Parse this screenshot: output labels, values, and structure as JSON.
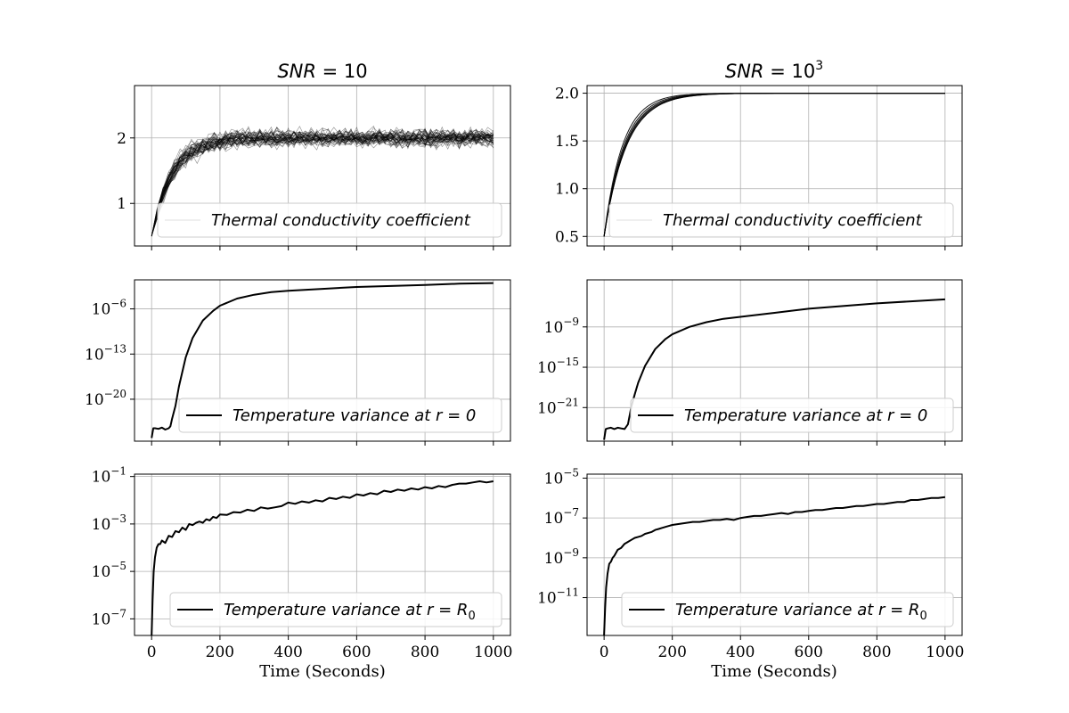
{
  "figure": {
    "xlabel": "Time (Seconds)"
  },
  "columns": [
    {
      "title_var": "SNR",
      "title_eq": " = ",
      "title_base": "10",
      "title_exp": ""
    },
    {
      "title_var": "SNR",
      "title_eq": " = ",
      "title_base": "10",
      "title_exp": "3"
    }
  ],
  "chart_data": [
    {
      "id": "left-top",
      "type": "line",
      "scale": "linear",
      "xlim": [
        -50,
        1050
      ],
      "ylim": [
        0.35,
        2.8
      ],
      "grid": true,
      "xticks": [
        0,
        200,
        400,
        600,
        800,
        1000
      ],
      "yticks": [
        {
          "v": 1,
          "base": "1",
          "exp": ""
        },
        {
          "v": 2,
          "base": "2",
          "exp": ""
        }
      ],
      "legend": {
        "label": "Thermal conductivity coefficient",
        "placement": "lower-right"
      },
      "series_style": "ensemble-noisy",
      "ensemble": {
        "count": 45,
        "start": 0.5,
        "plateau": 2.0,
        "time_constant": 60,
        "noise": 0.2,
        "samples": 60
      }
    },
    {
      "id": "right-top",
      "type": "line",
      "scale": "linear",
      "xlim": [
        -50,
        1050
      ],
      "ylim": [
        0.4,
        2.08
      ],
      "grid": true,
      "xticks": [
        0,
        200,
        400,
        600,
        800,
        1000
      ],
      "yticks": [
        {
          "v": 0.5,
          "base": "0.5",
          "exp": ""
        },
        {
          "v": 1.0,
          "base": "1.0",
          "exp": ""
        },
        {
          "v": 1.5,
          "base": "1.5",
          "exp": ""
        },
        {
          "v": 2.0,
          "base": "2.0",
          "exp": ""
        }
      ],
      "legend": {
        "label": "Thermal conductivity coefficient",
        "placement": "lower-right"
      },
      "series_style": "ensemble-smooth",
      "ensemble": {
        "count": 6,
        "start": 0.5,
        "plateau": 2.0,
        "time_constant": 60,
        "noise": 0.0,
        "samples": 120
      }
    },
    {
      "id": "left-mid",
      "type": "line",
      "scale": "log10",
      "xlim": [
        -50,
        1050
      ],
      "ylim": [
        -26.5,
        -1.5
      ],
      "grid": true,
      "xticks": [
        0,
        200,
        400,
        600,
        800,
        1000
      ],
      "yticks": [
        {
          "v": -6,
          "base": "10",
          "exp": "−6"
        },
        {
          "v": -13,
          "base": "10",
          "exp": "−13"
        },
        {
          "v": -20,
          "base": "10",
          "exp": "−20"
        }
      ],
      "legend": {
        "label_prefix": "Temperature variance at ",
        "label_math": "r = 0",
        "placement": "lower-right"
      },
      "series": [
        {
          "name": "Temperature variance at r = 0",
          "x": [
            0,
            5,
            10,
            20,
            30,
            40,
            50,
            55,
            60,
            70,
            80,
            100,
            120,
            150,
            180,
            200,
            250,
            300,
            350,
            400,
            500,
            600,
            700,
            800,
            900,
            1000
          ],
          "y": [
            -26,
            -24.5,
            -24.5,
            -24.6,
            -24.4,
            -24.7,
            -24.5,
            -24.2,
            -23.0,
            -21.0,
            -18.0,
            -13.5,
            -10.5,
            -7.8,
            -6.3,
            -5.5,
            -4.4,
            -3.8,
            -3.4,
            -3.2,
            -2.9,
            -2.6,
            -2.45,
            -2.3,
            -2.1,
            -2.0
          ]
        }
      ]
    },
    {
      "id": "right-mid",
      "type": "line",
      "scale": "log10",
      "xlim": [
        -50,
        1050
      ],
      "ylim": [
        -26,
        -2
      ],
      "grid": true,
      "xticks": [
        0,
        200,
        400,
        600,
        800,
        1000
      ],
      "yticks": [
        {
          "v": -9,
          "base": "10",
          "exp": "−9"
        },
        {
          "v": -15,
          "base": "10",
          "exp": "−15"
        },
        {
          "v": -21,
          "base": "10",
          "exp": "−21"
        }
      ],
      "legend": {
        "label_prefix": "Temperature variance at ",
        "label_math": "r = 0",
        "placement": "lower-right"
      },
      "series": [
        {
          "name": "Temperature variance at r = 0",
          "x": [
            0,
            5,
            10,
            20,
            30,
            40,
            50,
            60,
            70,
            80,
            90,
            100,
            120,
            150,
            180,
            200,
            250,
            300,
            350,
            400,
            500,
            600,
            700,
            800,
            900,
            1000
          ],
          "y": [
            -25.8,
            -24.2,
            -24.1,
            -24.0,
            -24.2,
            -24.0,
            -24.1,
            -24.2,
            -23.5,
            -20.8,
            -19.0,
            -17.3,
            -14.8,
            -12.3,
            -10.8,
            -10.1,
            -9.0,
            -8.3,
            -7.8,
            -7.5,
            -6.9,
            -6.3,
            -5.9,
            -5.5,
            -5.2,
            -4.9
          ]
        }
      ]
    },
    {
      "id": "left-bot",
      "type": "line",
      "scale": "log10",
      "xlim": [
        -50,
        1050
      ],
      "ylim": [
        -7.7,
        -0.9
      ],
      "grid": true,
      "xticks": [
        0,
        200,
        400,
        600,
        800,
        1000
      ],
      "yticks": [
        {
          "v": -1,
          "base": "10",
          "exp": "−1"
        },
        {
          "v": -3,
          "base": "10",
          "exp": "−3"
        },
        {
          "v": -5,
          "base": "10",
          "exp": "−5"
        },
        {
          "v": -7,
          "base": "10",
          "exp": "−7"
        }
      ],
      "legend": {
        "label_prefix": "Temperature variance at ",
        "label_math": "r = R",
        "label_sub": "0",
        "placement": "lower-right"
      },
      "series": [
        {
          "name": "Temperature variance at r = R0",
          "x": [
            0,
            3,
            6,
            10,
            15,
            20,
            25,
            30,
            40,
            50,
            60,
            70,
            80,
            90,
            100,
            110,
            120,
            130,
            140,
            150,
            160,
            170,
            180,
            190,
            200,
            220,
            240,
            260,
            280,
            300,
            320,
            340,
            360,
            380,
            400,
            420,
            440,
            460,
            480,
            500,
            520,
            540,
            560,
            580,
            600,
            620,
            640,
            660,
            680,
            700,
            720,
            740,
            760,
            780,
            800,
            820,
            840,
            860,
            880,
            900,
            920,
            940,
            960,
            980,
            1000
          ],
          "y": [
            -7.7,
            -6.2,
            -5.0,
            -4.4,
            -4.0,
            -3.85,
            -3.85,
            -3.7,
            -3.8,
            -3.5,
            -3.55,
            -3.3,
            -3.35,
            -3.15,
            -3.25,
            -3.0,
            -3.05,
            -2.95,
            -2.9,
            -2.95,
            -2.8,
            -2.85,
            -2.7,
            -2.75,
            -2.6,
            -2.62,
            -2.5,
            -2.52,
            -2.4,
            -2.45,
            -2.3,
            -2.35,
            -2.3,
            -2.25,
            -2.1,
            -2.15,
            -2.05,
            -2.1,
            -2.0,
            -2.05,
            -1.9,
            -1.95,
            -1.85,
            -1.9,
            -1.75,
            -1.8,
            -1.7,
            -1.75,
            -1.6,
            -1.65,
            -1.55,
            -1.6,
            -1.5,
            -1.55,
            -1.45,
            -1.5,
            -1.4,
            -1.45,
            -1.35,
            -1.3,
            -1.3,
            -1.25,
            -1.2,
            -1.25,
            -1.2
          ]
        }
      ]
    },
    {
      "id": "right-bot",
      "type": "line",
      "scale": "log10",
      "xlim": [
        -50,
        1050
      ],
      "ylim": [
        -12.9,
        -4.8
      ],
      "grid": true,
      "xticks": [
        0,
        200,
        400,
        600,
        800,
        1000
      ],
      "yticks": [
        {
          "v": -5,
          "base": "10",
          "exp": "−5"
        },
        {
          "v": -7,
          "base": "10",
          "exp": "−7"
        },
        {
          "v": -9,
          "base": "10",
          "exp": "−9"
        },
        {
          "v": -11,
          "base": "10",
          "exp": "−11"
        }
      ],
      "legend": {
        "label_prefix": "Temperature variance at ",
        "label_math": "r = R",
        "label_sub": "0",
        "placement": "lower-right"
      },
      "series": [
        {
          "name": "Temperature variance at r = R0",
          "x": [
            0,
            3,
            6,
            10,
            15,
            20,
            25,
            30,
            40,
            50,
            60,
            70,
            80,
            90,
            100,
            110,
            120,
            130,
            140,
            150,
            160,
            170,
            180,
            190,
            200,
            220,
            240,
            260,
            280,
            300,
            320,
            340,
            360,
            380,
            400,
            420,
            440,
            460,
            480,
            500,
            520,
            540,
            560,
            580,
            600,
            620,
            640,
            660,
            680,
            700,
            720,
            740,
            760,
            780,
            800,
            820,
            840,
            860,
            880,
            900,
            920,
            940,
            960,
            980,
            1000
          ],
          "y": [
            -12.9,
            -11.5,
            -10.5,
            -9.8,
            -9.3,
            -9.2,
            -9.0,
            -8.9,
            -8.6,
            -8.5,
            -8.3,
            -8.2,
            -8.1,
            -8.0,
            -7.95,
            -7.9,
            -7.8,
            -7.75,
            -7.7,
            -7.6,
            -7.55,
            -7.5,
            -7.45,
            -7.4,
            -7.35,
            -7.3,
            -7.25,
            -7.2,
            -7.2,
            -7.15,
            -7.1,
            -7.1,
            -7.05,
            -7.1,
            -7.0,
            -6.95,
            -6.9,
            -6.9,
            -6.85,
            -6.8,
            -6.75,
            -6.8,
            -6.7,
            -6.7,
            -6.65,
            -6.6,
            -6.6,
            -6.55,
            -6.5,
            -6.5,
            -6.45,
            -6.4,
            -6.4,
            -6.35,
            -6.3,
            -6.3,
            -6.25,
            -6.2,
            -6.2,
            -6.1,
            -6.1,
            -6.05,
            -6.0,
            -6.0,
            -5.95
          ]
        }
      ]
    }
  ]
}
